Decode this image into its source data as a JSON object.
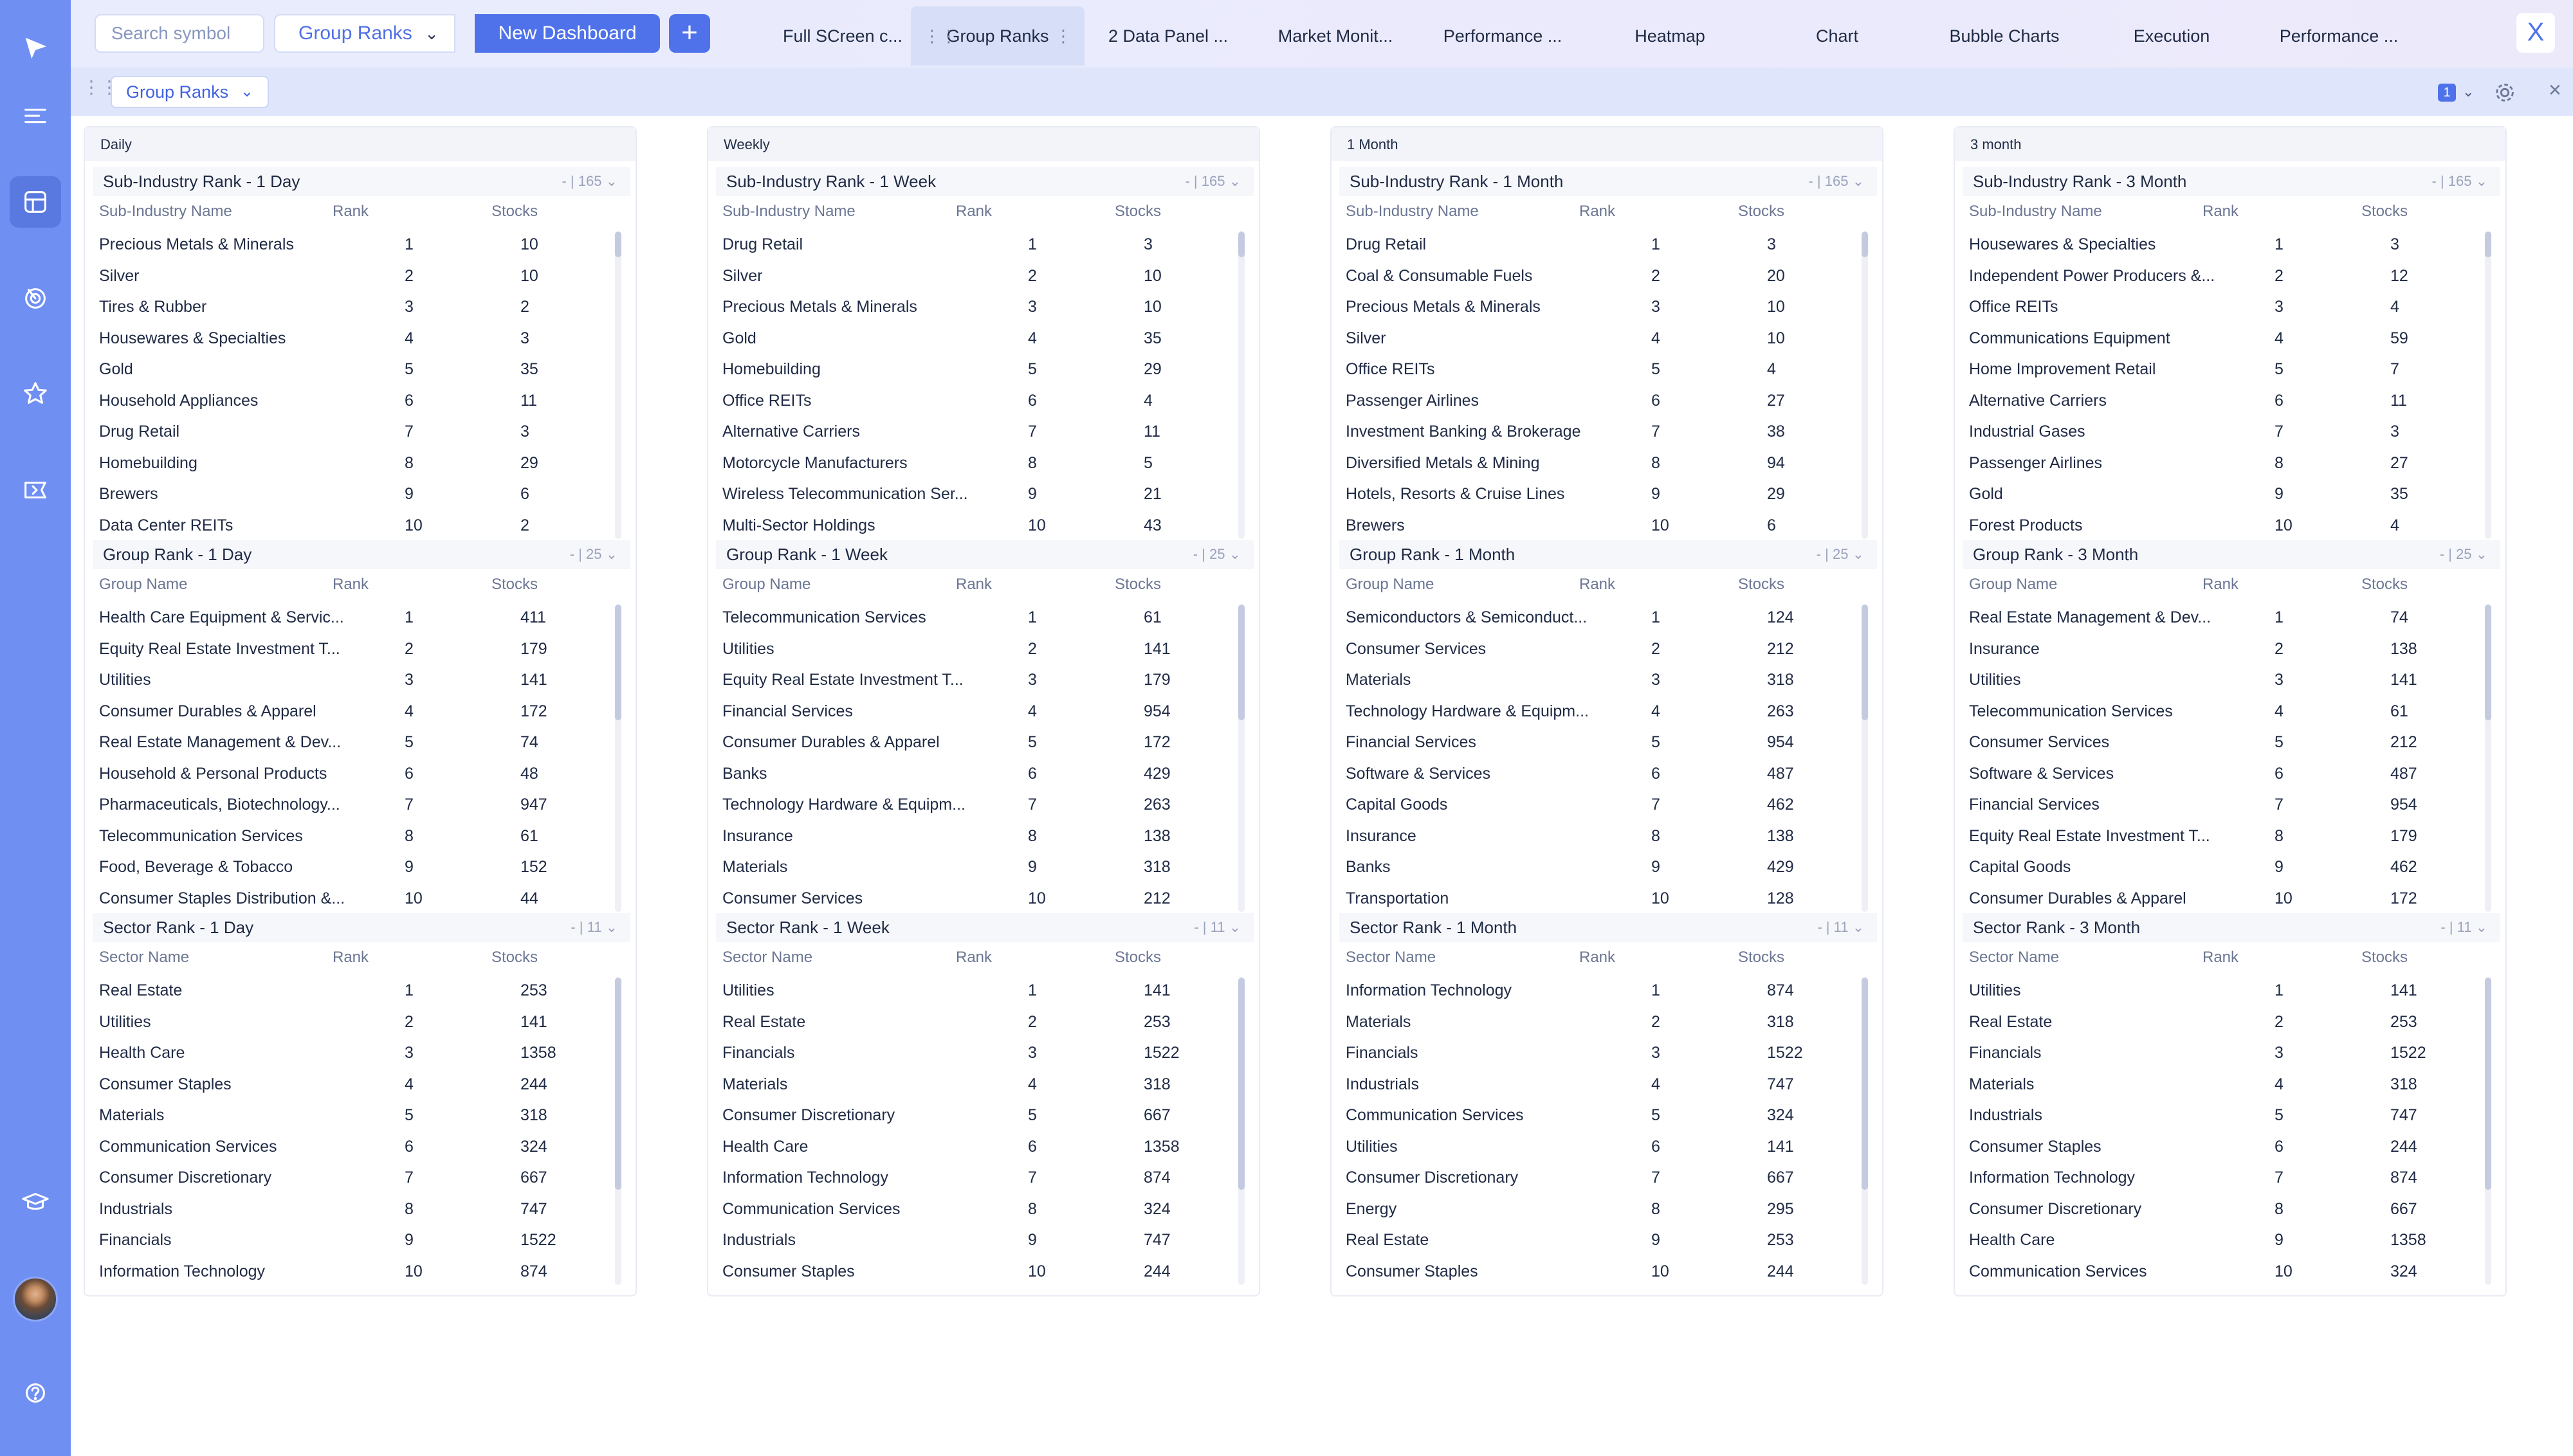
{
  "top": {
    "search_placeholder": "Search symbol",
    "dashboard_select": "Group Ranks",
    "new_dashboard": "New Dashboard",
    "add": "+",
    "close": "X",
    "tabs": [
      {
        "label": "Full SCreen c..."
      },
      {
        "label": "Group Ranks"
      },
      {
        "label": "2 Data Panel ..."
      },
      {
        "label": "Market Monit..."
      },
      {
        "label": "Performance ..."
      },
      {
        "label": "Heatmap"
      },
      {
        "label": "Chart"
      },
      {
        "label": "Bubble Charts"
      },
      {
        "label": "Execution"
      },
      {
        "label": "Performance ..."
      }
    ]
  },
  "sub": {
    "title": "Group Ranks",
    "badge": "1",
    "close": "×"
  },
  "cols": [
    {
      "name": "Daily",
      "panels": [
        {
          "title": "Sub-Industry Rank - 1 Day",
          "ctrl": "- | 165",
          "h": [
            "Sub-Industry Name",
            "Rank",
            "Stocks"
          ],
          "rows": [
            [
              "Precious Metals & Minerals",
              "1",
              "10"
            ],
            [
              "Silver",
              "2",
              "10"
            ],
            [
              "Tires & Rubber",
              "3",
              "2"
            ],
            [
              "Housewares & Specialties",
              "4",
              "3"
            ],
            [
              "Gold",
              "5",
              "35"
            ],
            [
              "Household Appliances",
              "6",
              "11"
            ],
            [
              "Drug Retail",
              "7",
              "3"
            ],
            [
              "Homebuilding",
              "8",
              "29"
            ],
            [
              "Brewers",
              "9",
              "6"
            ],
            [
              "Data Center REITs",
              "10",
              "2"
            ]
          ]
        },
        {
          "title": "Group Rank - 1 Day",
          "ctrl": "- | 25",
          "h": [
            "Group Name",
            "Rank",
            "Stocks"
          ],
          "rows": [
            [
              "Health Care Equipment & Servic...",
              "1",
              "411"
            ],
            [
              "Equity Real Estate Investment T...",
              "2",
              "179"
            ],
            [
              "Utilities",
              "3",
              "141"
            ],
            [
              "Consumer Durables & Apparel",
              "4",
              "172"
            ],
            [
              "Real Estate Management & Dev...",
              "5",
              "74"
            ],
            [
              "Household & Personal Products",
              "6",
              "48"
            ],
            [
              "Pharmaceuticals, Biotechnology...",
              "7",
              "947"
            ],
            [
              "Telecommunication Services",
              "8",
              "61"
            ],
            [
              "Food, Beverage & Tobacco",
              "9",
              "152"
            ],
            [
              "Consumer Staples Distribution &...",
              "10",
              "44"
            ]
          ]
        },
        {
          "title": "Sector Rank - 1 Day",
          "ctrl": "- | 11",
          "h": [
            "Sector Name",
            "Rank",
            "Stocks"
          ],
          "rows": [
            [
              "Real Estate",
              "1",
              "253"
            ],
            [
              "Utilities",
              "2",
              "141"
            ],
            [
              "Health Care",
              "3",
              "1358"
            ],
            [
              "Consumer Staples",
              "4",
              "244"
            ],
            [
              "Materials",
              "5",
              "318"
            ],
            [
              "Communication Services",
              "6",
              "324"
            ],
            [
              "Consumer Discretionary",
              "7",
              "667"
            ],
            [
              "Industrials",
              "8",
              "747"
            ],
            [
              "Financials",
              "9",
              "1522"
            ],
            [
              "Information Technology",
              "10",
              "874"
            ]
          ]
        }
      ]
    },
    {
      "name": "Weekly",
      "panels": [
        {
          "title": "Sub-Industry Rank - 1 Week",
          "ctrl": "- | 165",
          "h": [
            "Sub-Industry Name",
            "Rank",
            "Stocks"
          ],
          "rows": [
            [
              "Drug Retail",
              "1",
              "3"
            ],
            [
              "Silver",
              "2",
              "10"
            ],
            [
              "Precious Metals & Minerals",
              "3",
              "10"
            ],
            [
              "Gold",
              "4",
              "35"
            ],
            [
              "Homebuilding",
              "5",
              "29"
            ],
            [
              "Office REITs",
              "6",
              "4"
            ],
            [
              "Alternative Carriers",
              "7",
              "11"
            ],
            [
              "Motorcycle Manufacturers",
              "8",
              "5"
            ],
            [
              "Wireless Telecommunication Ser...",
              "9",
              "21"
            ],
            [
              "Multi-Sector Holdings",
              "10",
              "43"
            ]
          ]
        },
        {
          "title": "Group Rank - 1 Week",
          "ctrl": "- | 25",
          "h": [
            "Group Name",
            "Rank",
            "Stocks"
          ],
          "rows": [
            [
              "Telecommunication Services",
              "1",
              "61"
            ],
            [
              "Utilities",
              "2",
              "141"
            ],
            [
              "Equity Real Estate Investment T...",
              "3",
              "179"
            ],
            [
              "Financial Services",
              "4",
              "954"
            ],
            [
              "Consumer Durables & Apparel",
              "5",
              "172"
            ],
            [
              "Banks",
              "6",
              "429"
            ],
            [
              "Technology Hardware & Equipm...",
              "7",
              "263"
            ],
            [
              "Insurance",
              "8",
              "138"
            ],
            [
              "Materials",
              "9",
              "318"
            ],
            [
              "Consumer Services",
              "10",
              "212"
            ]
          ]
        },
        {
          "title": "Sector Rank - 1 Week",
          "ctrl": "- | 11",
          "h": [
            "Sector Name",
            "Rank",
            "Stocks"
          ],
          "rows": [
            [
              "Utilities",
              "1",
              "141"
            ],
            [
              "Real Estate",
              "2",
              "253"
            ],
            [
              "Financials",
              "3",
              "1522"
            ],
            [
              "Materials",
              "4",
              "318"
            ],
            [
              "Consumer Discretionary",
              "5",
              "667"
            ],
            [
              "Health Care",
              "6",
              "1358"
            ],
            [
              "Information Technology",
              "7",
              "874"
            ],
            [
              "Communication Services",
              "8",
              "324"
            ],
            [
              "Industrials",
              "9",
              "747"
            ],
            [
              "Consumer Staples",
              "10",
              "244"
            ]
          ]
        }
      ]
    },
    {
      "name": "1 Month",
      "panels": [
        {
          "title": "Sub-Industry Rank - 1 Month",
          "ctrl": "- | 165",
          "h": [
            "Sub-Industry Name",
            "Rank",
            "Stocks"
          ],
          "rows": [
            [
              "Drug Retail",
              "1",
              "3"
            ],
            [
              "Coal & Consumable Fuels",
              "2",
              "20"
            ],
            [
              "Precious Metals & Minerals",
              "3",
              "10"
            ],
            [
              "Silver",
              "4",
              "10"
            ],
            [
              "Office REITs",
              "5",
              "4"
            ],
            [
              "Passenger Airlines",
              "6",
              "27"
            ],
            [
              "Investment Banking & Brokerage",
              "7",
              "38"
            ],
            [
              "Diversified Metals & Mining",
              "8",
              "94"
            ],
            [
              "Hotels, Resorts & Cruise Lines",
              "9",
              "29"
            ],
            [
              "Brewers",
              "10",
              "6"
            ]
          ]
        },
        {
          "title": "Group Rank - 1 Month",
          "ctrl": "- | 25",
          "h": [
            "Group Name",
            "Rank",
            "Stocks"
          ],
          "rows": [
            [
              "Semiconductors & Semiconduct...",
              "1",
              "124"
            ],
            [
              "Consumer Services",
              "2",
              "212"
            ],
            [
              "Materials",
              "3",
              "318"
            ],
            [
              "Technology Hardware & Equipm...",
              "4",
              "263"
            ],
            [
              "Financial Services",
              "5",
              "954"
            ],
            [
              "Software & Services",
              "6",
              "487"
            ],
            [
              "Capital Goods",
              "7",
              "462"
            ],
            [
              "Insurance",
              "8",
              "138"
            ],
            [
              "Banks",
              "9",
              "429"
            ],
            [
              "Transportation",
              "10",
              "128"
            ]
          ]
        },
        {
          "title": "Sector Rank - 1 Month",
          "ctrl": "- | 11",
          "h": [
            "Sector Name",
            "Rank",
            "Stocks"
          ],
          "rows": [
            [
              "Information Technology",
              "1",
              "874"
            ],
            [
              "Materials",
              "2",
              "318"
            ],
            [
              "Financials",
              "3",
              "1522"
            ],
            [
              "Industrials",
              "4",
              "747"
            ],
            [
              "Communication Services",
              "5",
              "324"
            ],
            [
              "Utilities",
              "6",
              "141"
            ],
            [
              "Consumer Discretionary",
              "7",
              "667"
            ],
            [
              "Energy",
              "8",
              "295"
            ],
            [
              "Real Estate",
              "9",
              "253"
            ],
            [
              "Consumer Staples",
              "10",
              "244"
            ]
          ]
        }
      ]
    },
    {
      "name": "3 month",
      "panels": [
        {
          "title": "Sub-Industry Rank - 3 Month",
          "ctrl": "- | 165",
          "h": [
            "Sub-Industry Name",
            "Rank",
            "Stocks"
          ],
          "rows": [
            [
              "Housewares & Specialties",
              "1",
              "3"
            ],
            [
              "Independent Power Producers &...",
              "2",
              "12"
            ],
            [
              "Office REITs",
              "3",
              "4"
            ],
            [
              "Communications Equipment",
              "4",
              "59"
            ],
            [
              "Home Improvement Retail",
              "5",
              "7"
            ],
            [
              "Alternative Carriers",
              "6",
              "11"
            ],
            [
              "Industrial Gases",
              "7",
              "3"
            ],
            [
              "Passenger Airlines",
              "8",
              "27"
            ],
            [
              "Gold",
              "9",
              "35"
            ],
            [
              "Forest Products",
              "10",
              "4"
            ]
          ]
        },
        {
          "title": "Group Rank - 3 Month",
          "ctrl": "- | 25",
          "h": [
            "Group Name",
            "Rank",
            "Stocks"
          ],
          "rows": [
            [
              "Real Estate Management & Dev...",
              "1",
              "74"
            ],
            [
              "Insurance",
              "2",
              "138"
            ],
            [
              "Utilities",
              "3",
              "141"
            ],
            [
              "Telecommunication Services",
              "4",
              "61"
            ],
            [
              "Consumer Services",
              "5",
              "212"
            ],
            [
              "Software & Services",
              "6",
              "487"
            ],
            [
              "Financial Services",
              "7",
              "954"
            ],
            [
              "Equity Real Estate Investment T...",
              "8",
              "179"
            ],
            [
              "Capital Goods",
              "9",
              "462"
            ],
            [
              "Consumer Durables & Apparel",
              "10",
              "172"
            ]
          ]
        },
        {
          "title": "Sector Rank - 3 Month",
          "ctrl": "- | 11",
          "h": [
            "Sector Name",
            "Rank",
            "Stocks"
          ],
          "rows": [
            [
              "Utilities",
              "1",
              "141"
            ],
            [
              "Real Estate",
              "2",
              "253"
            ],
            [
              "Financials",
              "3",
              "1522"
            ],
            [
              "Materials",
              "4",
              "318"
            ],
            [
              "Industrials",
              "5",
              "747"
            ],
            [
              "Consumer Staples",
              "6",
              "244"
            ],
            [
              "Information Technology",
              "7",
              "874"
            ],
            [
              "Consumer Discretionary",
              "8",
              "667"
            ],
            [
              "Health Care",
              "9",
              "1358"
            ],
            [
              "Communication Services",
              "10",
              "324"
            ]
          ]
        }
      ]
    }
  ]
}
